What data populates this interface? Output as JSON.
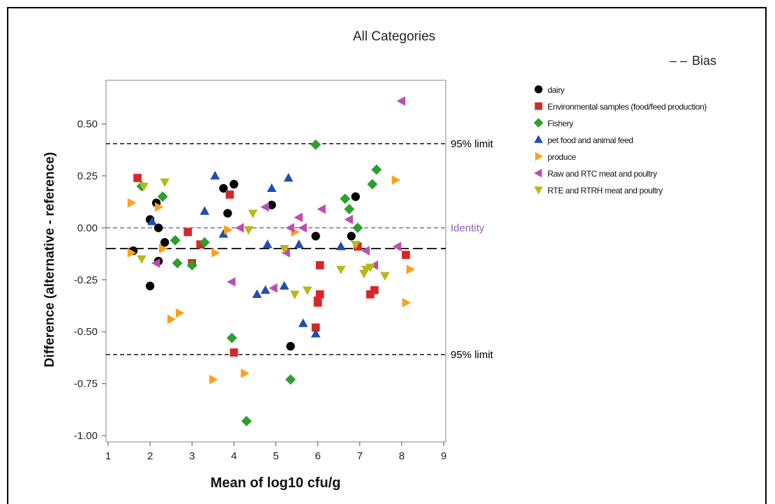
{
  "chart_data": {
    "type": "scatter",
    "title": "All Categories",
    "xlabel": "Mean of log10 cfu/g",
    "ylabel": "Difference (alternative - reference)",
    "xlim": [
      0.95,
      9.05
    ],
    "ylim": [
      -1.03,
      0.71
    ],
    "x_ticks": [
      1,
      2,
      3,
      4,
      5,
      6,
      7,
      8,
      9
    ],
    "y_ticks": [
      -1.0,
      -0.75,
      -0.5,
      -0.25,
      0.0,
      0.25,
      0.5
    ],
    "y_tick_labels": [
      "-1.00",
      "-0.75",
      "-0.50",
      "-0.25",
      "0.00",
      "0.25",
      "0.50"
    ],
    "grid": false,
    "reference_lines": [
      {
        "name": "95% limit",
        "y": 0.405,
        "style": "dashed",
        "color": "#000000",
        "label": "95% limit"
      },
      {
        "name": "Identity",
        "y": 0.0,
        "style": "dashed",
        "color": "#8a5fb8",
        "label": "Identity"
      },
      {
        "name": "Bias",
        "y": -0.1,
        "style": "longdash",
        "color": "#000000",
        "label": ""
      },
      {
        "name": "95% limit lower",
        "y": -0.61,
        "style": "dashed",
        "color": "#000000",
        "label": "95% limit"
      }
    ],
    "bias_legend": {
      "symbol": "– –",
      "label": "Bias"
    },
    "series": [
      {
        "name": "dairy",
        "marker": "circle",
        "color": "#000000",
        "points": [
          [
            1.6,
            -0.11
          ],
          [
            2.0,
            0.04
          ],
          [
            2.15,
            0.12
          ],
          [
            2.2,
            0.0
          ],
          [
            2.35,
            -0.07
          ],
          [
            2.0,
            -0.28
          ],
          [
            2.2,
            -0.16
          ],
          [
            3.75,
            0.19
          ],
          [
            3.85,
            0.07
          ],
          [
            4.0,
            0.21
          ],
          [
            4.9,
            0.11
          ],
          [
            5.35,
            -0.57
          ],
          [
            5.95,
            -0.04
          ],
          [
            6.8,
            -0.04
          ],
          [
            6.9,
            0.15
          ]
        ]
      },
      {
        "name": "Environmental samples (food/feed production)",
        "marker": "square",
        "color": "#d62728",
        "points": [
          [
            1.7,
            0.24
          ],
          [
            2.9,
            -0.02
          ],
          [
            3.0,
            -0.17
          ],
          [
            3.2,
            -0.08
          ],
          [
            3.9,
            0.16
          ],
          [
            4.0,
            -0.6
          ],
          [
            5.95,
            -0.48
          ],
          [
            6.0,
            -0.35
          ],
          [
            6.05,
            -0.18
          ],
          [
            6.05,
            -0.32
          ],
          [
            6.0,
            -0.36
          ],
          [
            6.95,
            -0.09
          ],
          [
            7.25,
            -0.32
          ],
          [
            7.35,
            -0.3
          ],
          [
            8.1,
            -0.13
          ]
        ]
      },
      {
        "name": "Fishery",
        "marker": "diamond",
        "color": "#2ca02c",
        "points": [
          [
            1.8,
            0.2
          ],
          [
            2.3,
            0.15
          ],
          [
            2.6,
            -0.06
          ],
          [
            2.65,
            -0.17
          ],
          [
            3.0,
            -0.18
          ],
          [
            3.3,
            -0.07
          ],
          [
            3.95,
            -0.53
          ],
          [
            4.3,
            -0.93
          ],
          [
            5.35,
            -0.73
          ],
          [
            5.95,
            0.4
          ],
          [
            6.65,
            0.14
          ],
          [
            6.75,
            0.09
          ],
          [
            6.95,
            0.0
          ],
          [
            7.3,
            0.21
          ],
          [
            7.4,
            0.28
          ]
        ]
      },
      {
        "name": "pet food and animal feed",
        "marker": "triangle-up",
        "color": "#1f4fad",
        "points": [
          [
            2.05,
            0.03
          ],
          [
            3.3,
            0.08
          ],
          [
            3.55,
            0.25
          ],
          [
            3.75,
            -0.03
          ],
          [
            4.55,
            -0.32
          ],
          [
            4.75,
            -0.3
          ],
          [
            4.8,
            -0.08
          ],
          [
            4.9,
            0.19
          ],
          [
            5.2,
            -0.28
          ],
          [
            5.3,
            0.24
          ],
          [
            5.55,
            -0.08
          ],
          [
            5.65,
            -0.46
          ],
          [
            5.95,
            -0.51
          ],
          [
            6.55,
            -0.09
          ]
        ]
      },
      {
        "name": "produce",
        "marker": "triangle-right",
        "color": "#ff9f1c",
        "points": [
          [
            1.55,
            0.12
          ],
          [
            1.55,
            -0.12
          ],
          [
            2.2,
            0.1
          ],
          [
            2.3,
            -0.1
          ],
          [
            2.5,
            -0.44
          ],
          [
            2.7,
            -0.41
          ],
          [
            3.5,
            -0.73
          ],
          [
            3.55,
            -0.12
          ],
          [
            3.85,
            -0.01
          ],
          [
            4.25,
            -0.7
          ],
          [
            5.45,
            -0.02
          ],
          [
            7.85,
            0.23
          ],
          [
            8.1,
            -0.36
          ],
          [
            8.2,
            -0.2
          ]
        ]
      },
      {
        "name": "Raw and RTC meat and poultry",
        "marker": "triangle-left",
        "color": "#c04cb0",
        "points": [
          [
            2.15,
            -0.17
          ],
          [
            3.95,
            -0.26
          ],
          [
            4.15,
            0.0
          ],
          [
            4.75,
            0.1
          ],
          [
            4.95,
            -0.29
          ],
          [
            5.25,
            -0.12
          ],
          [
            5.35,
            0.0
          ],
          [
            5.55,
            0.05
          ],
          [
            5.65,
            0.0
          ],
          [
            6.1,
            0.09
          ],
          [
            6.75,
            0.04
          ],
          [
            7.15,
            -0.11
          ],
          [
            7.35,
            -0.18
          ],
          [
            7.9,
            -0.09
          ],
          [
            8.0,
            0.61
          ]
        ]
      },
      {
        "name": "RTE and RTRH meat and poultry",
        "marker": "triangle-down",
        "color": "#b8b81a",
        "points": [
          [
            1.8,
            -0.15
          ],
          [
            1.85,
            0.2
          ],
          [
            2.35,
            0.22
          ],
          [
            4.35,
            -0.01
          ],
          [
            4.45,
            0.07
          ],
          [
            5.2,
            -0.1
          ],
          [
            5.45,
            -0.32
          ],
          [
            5.75,
            -0.3
          ],
          [
            6.55,
            -0.2
          ],
          [
            6.9,
            -0.08
          ],
          [
            7.1,
            -0.22
          ],
          [
            7.15,
            -0.2
          ],
          [
            7.25,
            -0.19
          ],
          [
            7.6,
            -0.23
          ]
        ]
      }
    ]
  }
}
